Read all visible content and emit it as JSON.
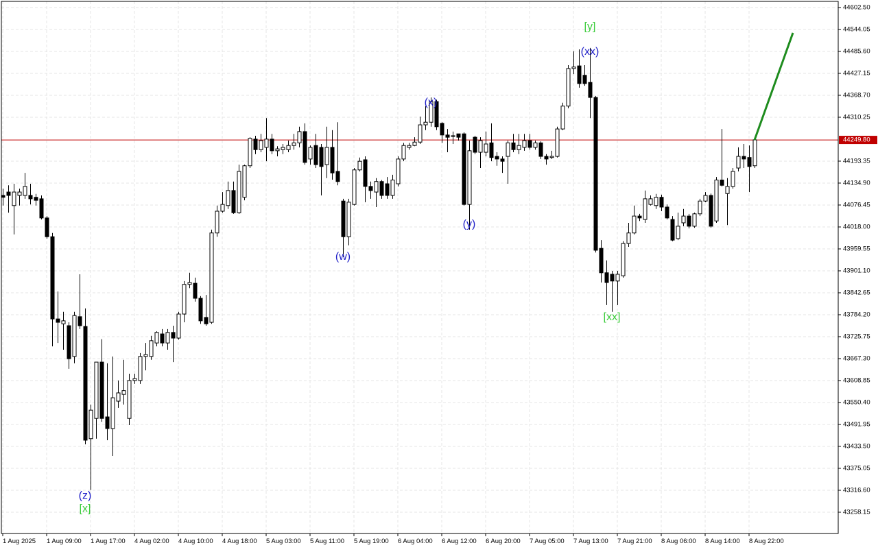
{
  "chart_data": {
    "type": "candlestick",
    "up_color": "#ffffff",
    "down_color": "#000000",
    "grid": true,
    "ylim": [
      43201.5,
      44618.9
    ],
    "yticks": [
      {
        "value": 44602.5,
        "label": "44602.50"
      },
      44544.05,
      {
        "value": 44485.6,
        "label": "44485.60"
      },
      44427.15,
      {
        "value": 44368.7,
        "label": "44368.70"
      },
      44310.25,
      44193.35,
      {
        "value": 44134.9,
        "label": "44134.90"
      },
      44076.45,
      {
        "value": 44018,
        "label": "44018.00"
      },
      43959.55,
      {
        "value": 43901.1,
        "label": "43901.10"
      },
      43842.65,
      {
        "value": 43784.2,
        "label": "43784.20"
      },
      43725.75,
      {
        "value": 43667.3,
        "label": "43667.30"
      },
      43608.85,
      {
        "value": 43550.4,
        "label": "43550.40"
      },
      43491.95,
      {
        "value": 43433.5,
        "label": "43433.50"
      },
      43375.05,
      {
        "value": 43316.6,
        "label": "43316.60"
      },
      43258.15
    ],
    "current_price": {
      "value": 44249.8,
      "label": "44249.80",
      "color": "#c00000"
    },
    "categories": [
      "1 Aug 2025",
      null,
      null,
      null,
      null,
      null,
      null,
      null,
      "1 Aug 09:00",
      null,
      null,
      null,
      null,
      null,
      null,
      null,
      "1 Aug 17:00",
      null,
      null,
      null,
      null,
      null,
      null,
      null,
      "4 Aug 02:00",
      null,
      null,
      null,
      null,
      null,
      null,
      null,
      "4 Aug 10:00",
      null,
      null,
      null,
      null,
      null,
      null,
      null,
      "4 Aug 18:00",
      null,
      null,
      null,
      null,
      null,
      null,
      null,
      "5 Aug 03:00",
      null,
      null,
      null,
      null,
      null,
      null,
      null,
      "5 Aug 11:00",
      null,
      null,
      null,
      null,
      null,
      null,
      null,
      "5 Aug 19:00",
      null,
      null,
      null,
      null,
      null,
      null,
      null,
      "6 Aug 04:00",
      null,
      null,
      null,
      null,
      null,
      null,
      null,
      "6 Aug 12:00",
      null,
      null,
      null,
      null,
      null,
      null,
      null,
      "6 Aug 20:00",
      null,
      null,
      null,
      null,
      null,
      null,
      null,
      "7 Aug 05:00",
      null,
      null,
      null,
      null,
      null,
      null,
      null,
      "7 Aug 13:00",
      null,
      null,
      null,
      null,
      null,
      null,
      null,
      "7 Aug 21:00",
      null,
      null,
      null,
      null,
      null,
      null,
      null,
      "8 Aug 06:00",
      null,
      null,
      null,
      null,
      null,
      null,
      null,
      "8 Aug 14:00",
      null,
      null,
      null,
      null,
      null,
      null,
      null,
      "8 Aug 22:00",
      null
    ],
    "ohlc": [
      [
        44102,
        44120,
        44075,
        44097
      ],
      [
        44111,
        44129,
        44056,
        44102
      ],
      [
        44075,
        44133,
        43998,
        44111
      ],
      [
        44102,
        44120,
        44075,
        44111
      ],
      [
        44102,
        44162,
        44093,
        44126
      ],
      [
        44102,
        44133,
        44078,
        44093
      ],
      [
        44097,
        44106,
        44075,
        44089
      ],
      [
        44093,
        44102,
        44038,
        44042
      ],
      [
        44042,
        44047,
        43987,
        43992
      ],
      [
        43992,
        44002,
        43700,
        43773
      ],
      [
        43773,
        43846,
        43709,
        43764
      ],
      [
        43760,
        43792,
        43691,
        43768
      ],
      [
        43755,
        43764,
        43640,
        43667
      ],
      [
        43673,
        43792,
        43655,
        43782
      ],
      [
        43779,
        43892,
        43746,
        43755
      ],
      [
        43753,
        43801,
        43439,
        43450
      ],
      [
        43454,
        43545,
        43317,
        43530
      ],
      [
        43508,
        43658,
        43454,
        43658
      ],
      [
        43658,
        43719,
        43499,
        43508
      ],
      [
        43512,
        43655,
        43450,
        43481
      ],
      [
        43481,
        43673,
        43408,
        43563
      ],
      [
        43554,
        43609,
        43536,
        43576
      ],
      [
        43572,
        43664,
        43545,
        43582
      ],
      [
        43508,
        43627,
        43490,
        43609
      ],
      [
        43609,
        43627,
        43600,
        43614
      ],
      [
        43609,
        43682,
        43600,
        43673
      ],
      [
        43673,
        43709,
        43636,
        43678
      ],
      [
        43673,
        43728,
        43664,
        43715
      ],
      [
        43709,
        43740,
        43700,
        43737
      ],
      [
        43733,
        43746,
        43700,
        43709
      ],
      [
        43709,
        43746,
        43691,
        43737
      ],
      [
        43737,
        43755,
        43658,
        43722
      ],
      [
        43722,
        43792,
        43718,
        43786
      ],
      [
        43786,
        43874,
        43764,
        43865
      ],
      [
        43865,
        43896,
        43855,
        43870
      ],
      [
        43868,
        43883,
        43819,
        43828
      ],
      [
        43828,
        43834,
        43760,
        43768
      ],
      [
        43777,
        43837,
        43755,
        43760
      ],
      [
        43764,
        44011,
        43760,
        44002
      ],
      [
        44002,
        44075,
        43992,
        44060
      ],
      [
        44060,
        44111,
        44056,
        44078
      ],
      [
        44075,
        44139,
        44066,
        44115
      ],
      [
        44115,
        44139,
        44053,
        44056
      ],
      [
        44056,
        44184,
        44053,
        44166
      ],
      [
        44097,
        44184,
        44089,
        44181
      ],
      [
        44181,
        44257,
        44175,
        44254
      ],
      [
        44252,
        44261,
        44212,
        44224
      ],
      [
        44224,
        44266,
        44217,
        44248
      ],
      [
        44230,
        44308,
        44193,
        44252
      ],
      [
        44252,
        44266,
        44212,
        44221
      ],
      [
        44221,
        44233,
        44206,
        44226
      ],
      [
        44224,
        44239,
        44212,
        44230
      ],
      [
        44224,
        44248,
        44217,
        44235
      ],
      [
        44235,
        44266,
        44224,
        44242
      ],
      [
        44242,
        44285,
        44230,
        44272
      ],
      [
        44272,
        44294,
        44184,
        44190
      ],
      [
        44199,
        44235,
        44184,
        44230
      ],
      [
        44235,
        44266,
        44175,
        44184
      ],
      [
        44230,
        44239,
        44102,
        44179
      ],
      [
        44184,
        44285,
        44148,
        44230
      ],
      [
        44230,
        44276,
        44144,
        44162
      ],
      [
        44166,
        44297,
        44129,
        44139
      ],
      [
        44087,
        44093,
        43938,
        43992
      ],
      [
        43992,
        44093,
        43969,
        44084
      ],
      [
        44078,
        44175,
        44075,
        44170
      ],
      [
        44170,
        44203,
        44166,
        44193
      ],
      [
        44197,
        44206,
        44084,
        44126
      ],
      [
        44126,
        44139,
        44093,
        44115
      ],
      [
        44111,
        44148,
        44071,
        44139
      ],
      [
        44139,
        44143,
        44093,
        44102
      ],
      [
        44133,
        44151,
        44093,
        44102
      ],
      [
        44102,
        44157,
        44093,
        44143
      ],
      [
        44133,
        44206,
        44126,
        44199
      ],
      [
        44199,
        44242,
        44193,
        44235
      ],
      [
        44230,
        44242,
        44224,
        44235
      ],
      [
        44235,
        44257,
        44233,
        44244
      ],
      [
        44244,
        44312,
        44239,
        44290
      ],
      [
        44290,
        44340,
        44276,
        44297
      ],
      [
        44297,
        44363,
        44285,
        44352
      ],
      [
        44352,
        44357,
        44276,
        44285
      ],
      [
        44294,
        44297,
        44242,
        44263
      ],
      [
        44263,
        44279,
        44217,
        44257
      ],
      [
        44261,
        44272,
        44239,
        44261
      ],
      [
        44266,
        44266,
        44248,
        44257
      ],
      [
        44266,
        44270,
        44075,
        44078
      ],
      [
        44078,
        44248,
        44011,
        44221
      ],
      [
        44257,
        44261,
        44212,
        44217
      ],
      [
        44217,
        44257,
        44175,
        44248
      ],
      [
        44217,
        44272,
        44206,
        44239
      ],
      [
        44242,
        44294,
        44193,
        44203
      ],
      [
        44206,
        44217,
        44181,
        44199
      ],
      [
        44199,
        44206,
        44162,
        44193
      ],
      [
        44206,
        44248,
        44133,
        44242
      ],
      [
        44242,
        44266,
        44217,
        44224
      ],
      [
        44224,
        44266,
        44212,
        44235
      ],
      [
        44230,
        44266,
        44221,
        44248
      ],
      [
        44248,
        44266,
        44224,
        44230
      ],
      [
        44230,
        44248,
        44224,
        44242
      ],
      [
        44242,
        44246,
        44199,
        44206
      ],
      [
        44206,
        44212,
        44184,
        44199
      ],
      [
        44203,
        44221,
        44199,
        44206
      ],
      [
        44206,
        44285,
        44203,
        44279
      ],
      [
        44279,
        44349,
        44276,
        44340
      ],
      [
        44340,
        44449,
        44334,
        44440
      ],
      [
        44440,
        44486,
        44425,
        44444
      ],
      [
        44447,
        44491,
        44389,
        44400
      ],
      [
        44422,
        44449,
        44394,
        44400
      ],
      [
        44403,
        44495,
        44308,
        44363
      ],
      [
        44363,
        44367,
        43950,
        43956
      ],
      [
        43961,
        43983,
        43870,
        43896
      ],
      [
        43896,
        43929,
        43810,
        43870
      ],
      [
        43892,
        43901,
        43792,
        43874
      ],
      [
        43874,
        43901,
        43810,
        43892
      ],
      [
        43888,
        43980,
        43883,
        43974
      ],
      [
        43974,
        44029,
        43965,
        44002
      ],
      [
        44002,
        44075,
        43998,
        44047
      ],
      [
        44047,
        44053,
        44034,
        44042
      ],
      [
        44038,
        44115,
        44029,
        44093
      ],
      [
        44078,
        44102,
        44075,
        44093
      ],
      [
        44075,
        44106,
        44066,
        44097
      ],
      [
        44097,
        44104,
        44060,
        44071
      ],
      [
        44071,
        44078,
        44038,
        44042
      ],
      [
        44038,
        44047,
        43980,
        43983
      ],
      [
        43987,
        44056,
        43983,
        44020
      ],
      [
        44029,
        44066,
        44020,
        44047
      ],
      [
        44047,
        44053,
        44014,
        44020
      ],
      [
        44020,
        44056,
        44016,
        44053
      ],
      [
        44053,
        44093,
        44047,
        44087
      ],
      [
        44087,
        44111,
        44084,
        44102
      ],
      [
        44102,
        44107,
        44016,
        44020
      ],
      [
        44034,
        44151,
        44029,
        44143
      ],
      [
        44143,
        44279,
        44126,
        44129
      ],
      [
        44107,
        44148,
        44023,
        44126
      ],
      [
        44126,
        44175,
        44120,
        44166
      ],
      [
        44175,
        44230,
        44166,
        44206
      ],
      [
        44206,
        44239,
        44175,
        44199
      ],
      [
        44203,
        44235,
        44111,
        44179
      ],
      [
        44181,
        44257,
        44175,
        44250
      ]
    ],
    "projection": {
      "color": "#1e8c1e",
      "x": [
        137,
        144
      ],
      "values": [
        44249.8,
        44535
      ]
    },
    "annotations": [
      {
        "text": "(z)",
        "bar": 15,
        "price": 43301,
        "color": "#2020c8"
      },
      {
        "text": "[x]",
        "bar": 15,
        "price": 43267,
        "color": "#3ccc3c"
      },
      {
        "text": "(w)",
        "bar": 62,
        "price": 43938,
        "color": "#2020c8"
      },
      {
        "text": "(x)",
        "bar": 78,
        "price": 44349,
        "color": "#2020c8"
      },
      {
        "text": "(y)",
        "bar": 85,
        "price": 44025,
        "color": "#2020c8"
      },
      {
        "text": "(xx)",
        "bar": 107,
        "price": 44484,
        "color": "#2020c8"
      },
      {
        "text": "[y]",
        "bar": 107,
        "price": 44551,
        "color": "#3ccc3c"
      },
      {
        "text": "[xx]",
        "bar": 111,
        "price": 43777,
        "color": "#3ccc3c"
      }
    ]
  }
}
